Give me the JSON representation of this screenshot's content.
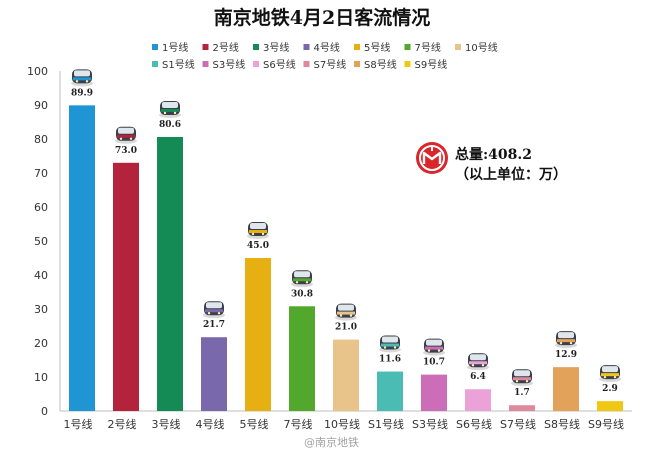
{
  "chart_data": {
    "type": "bar",
    "title": "南京地铁4月2日客流情况",
    "categories": [
      "1号线",
      "2号线",
      "3号线",
      "4号线",
      "5号线",
      "7号线",
      "10号线",
      "S1号线",
      "S3号线",
      "S6号线",
      "S7号线",
      "S8号线",
      "S9号线"
    ],
    "values": [
      89.9,
      73.0,
      80.6,
      21.7,
      45.0,
      30.8,
      21.0,
      11.6,
      10.7,
      6.4,
      1.7,
      12.9,
      2.9
    ],
    "value_labels": [
      "89.9",
      "73.0",
      "80.6",
      "21.7",
      "45.0",
      "30.8",
      "21.0",
      "11.6",
      "10.7",
      "6.4",
      "1.7",
      "12.9",
      "2.9"
    ],
    "colors": [
      "#1f96d3",
      "#b3243c",
      "#148a55",
      "#7a68ad",
      "#e6b012",
      "#52a82d",
      "#e8c48b",
      "#4bbcb4",
      "#cc6db8",
      "#eaa2d8",
      "#de8a9e",
      "#e3a25a",
      "#f0c814"
    ],
    "ylim": [
      0,
      100
    ],
    "yticks": [
      "0",
      "10",
      "20",
      "30",
      "40",
      "50",
      "60",
      "70",
      "80",
      "90",
      "100"
    ],
    "grid": false,
    "legend": {
      "placement": "top",
      "entries": [
        "1号线",
        "2号线",
        "3号线",
        "4号线",
        "5号线",
        "7号线",
        "10号线",
        "S1号线",
        "S3号线",
        "S6号线",
        "S7号线",
        "S8号线",
        "S9号线"
      ]
    },
    "annotation": {
      "total": "总量:408.2",
      "unit": "（以上单位：万）"
    }
  },
  "watermark": "@南京地铁",
  "icons": {
    "logo": "nanjing-metro-logo-icon",
    "train": "metro-train-icon"
  }
}
